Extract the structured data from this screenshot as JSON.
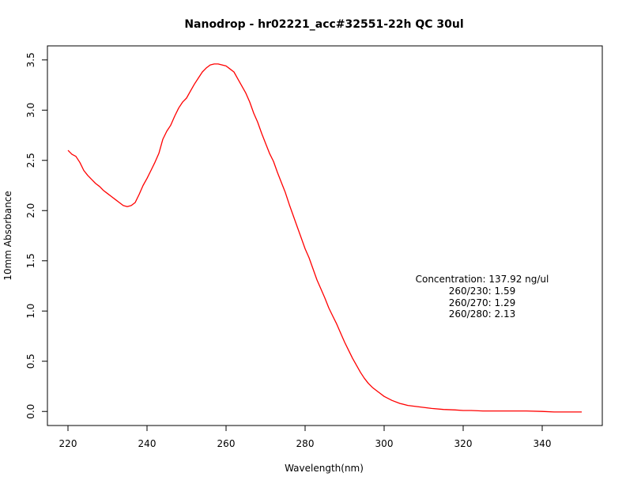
{
  "chart_data": {
    "type": "line",
    "title": "Nanodrop - hr02221_acc#32551-22h QC 30ul",
    "xlabel": "Wavelength(nm)",
    "ylabel": "10mm Absorbance",
    "xlim": [
      220,
      350
    ],
    "ylim": [
      0.0,
      3.5
    ],
    "x_ticks": [
      220,
      240,
      260,
      280,
      300,
      320,
      340
    ],
    "x_tick_labels": [
      "220",
      "240",
      "260",
      "280",
      "300",
      "320",
      "340"
    ],
    "y_ticks": [
      0.0,
      0.5,
      1.0,
      1.5,
      2.0,
      2.5,
      3.0,
      3.5
    ],
    "y_tick_labels": [
      "0.0",
      "0.5",
      "1.0",
      "1.5",
      "2.0",
      "2.5",
      "3.0",
      "3.5"
    ],
    "grid": false,
    "line_color": "#ff0000",
    "series": [
      {
        "x": [
          220,
          221,
          222,
          223,
          224,
          225,
          226,
          227,
          228,
          229,
          230,
          231,
          232,
          233,
          234,
          235,
          236,
          237,
          238,
          239,
          240,
          241,
          242,
          243,
          244,
          245,
          246,
          247,
          248,
          249,
          250,
          251,
          252,
          253,
          254,
          255,
          256,
          257,
          258,
          259,
          260,
          261,
          262,
          263,
          264,
          265,
          266,
          267,
          268,
          269,
          270,
          271,
          272,
          273,
          274,
          275,
          276,
          277,
          278,
          279,
          280,
          281,
          282,
          283,
          284,
          285,
          286,
          287,
          288,
          289,
          290,
          291,
          292,
          293,
          294,
          295,
          296,
          297,
          298,
          299,
          300,
          302,
          304,
          306,
          308,
          310,
          312,
          315,
          318,
          320,
          322,
          325,
          328,
          330,
          333,
          336,
          340,
          343,
          346,
          350
        ],
        "values": [
          2.6,
          2.56,
          2.54,
          2.48,
          2.4,
          2.35,
          2.31,
          2.27,
          2.24,
          2.2,
          2.17,
          2.14,
          2.11,
          2.08,
          2.05,
          2.04,
          2.05,
          2.08,
          2.16,
          2.25,
          2.32,
          2.4,
          2.48,
          2.57,
          2.71,
          2.79,
          2.85,
          2.94,
          3.02,
          3.08,
          3.12,
          3.19,
          3.26,
          3.32,
          3.38,
          3.42,
          3.45,
          3.46,
          3.46,
          3.45,
          3.44,
          3.41,
          3.38,
          3.31,
          3.24,
          3.17,
          3.08,
          2.97,
          2.88,
          2.77,
          2.67,
          2.57,
          2.49,
          2.38,
          2.28,
          2.18,
          2.06,
          1.95,
          1.84,
          1.73,
          1.62,
          1.53,
          1.42,
          1.31,
          1.22,
          1.13,
          1.03,
          0.95,
          0.87,
          0.78,
          0.69,
          0.61,
          0.53,
          0.46,
          0.39,
          0.33,
          0.28,
          0.24,
          0.21,
          0.18,
          0.15,
          0.11,
          0.08,
          0.06,
          0.05,
          0.04,
          0.03,
          0.02,
          0.015,
          0.01,
          0.01,
          0.005,
          0.005,
          0.005,
          0.005,
          0.005,
          0.0,
          -0.005,
          -0.005,
          -0.005
        ]
      }
    ],
    "annotation": [
      "Concentration: 137.92 ng/ul",
      "260/230: 1.59",
      "260/270: 1.29",
      "260/280: 2.13"
    ]
  }
}
